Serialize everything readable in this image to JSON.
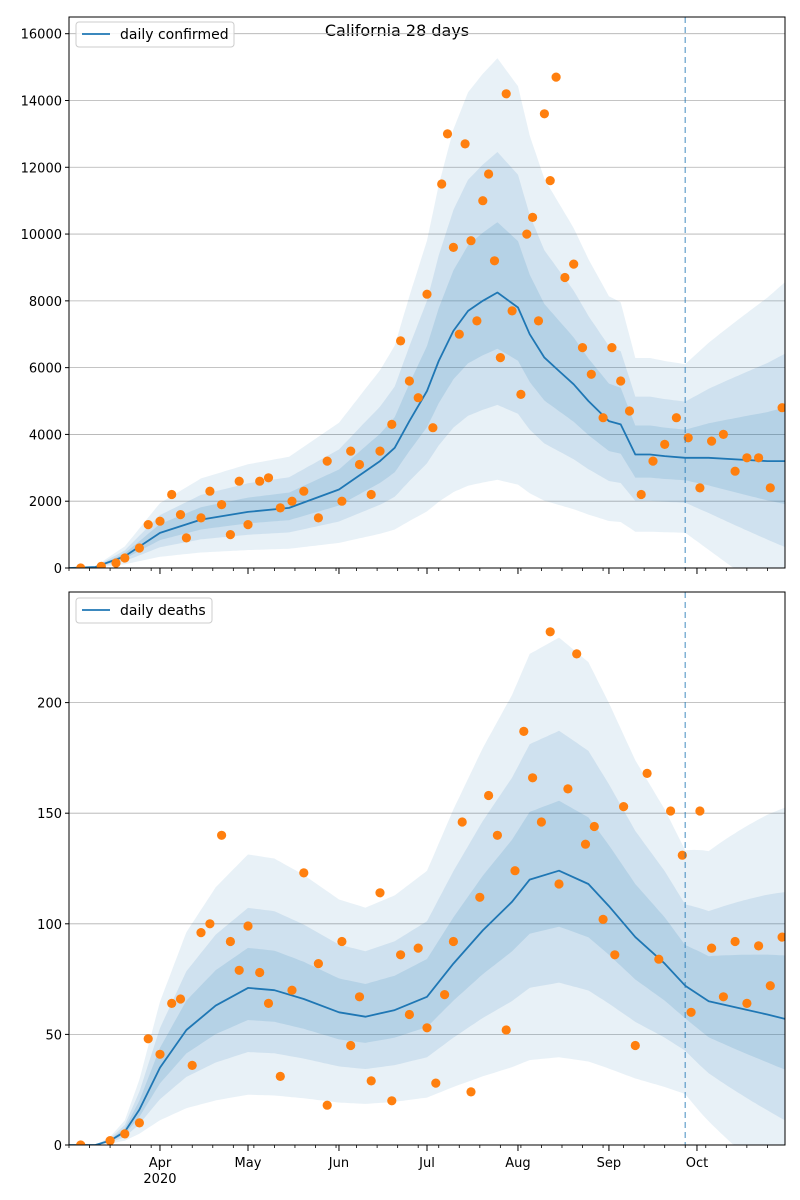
{
  "chart_data": [
    {
      "type": "line",
      "title": "California 28 days",
      "xlabel": "",
      "ylabel": "",
      "xlim": [
        "2020-03-01",
        "2020-10-31"
      ],
      "ylim": [
        0,
        16500
      ],
      "grid": "horizontal",
      "legend_position": "top-left",
      "yticks": [
        0,
        2000,
        4000,
        6000,
        8000,
        10000,
        12000,
        14000,
        16000
      ],
      "ytick_labels": [
        "0",
        "2000",
        "4000",
        "6000",
        "8000",
        "10000",
        "12000",
        "14000",
        "16000"
      ],
      "vline_date": "2020-09-27",
      "series": [
        {
          "name": "daily confirmed",
          "kind": "line",
          "color": "#1f77b4",
          "x": [
            "2020-03-01",
            "2020-03-10",
            "2020-03-20",
            "2020-04-01",
            "2020-04-15",
            "2020-05-01",
            "2020-05-15",
            "2020-06-01",
            "2020-06-10",
            "2020-06-15",
            "2020-06-20",
            "2020-06-25",
            "2020-07-01",
            "2020-07-05",
            "2020-07-10",
            "2020-07-15",
            "2020-07-20",
            "2020-07-25",
            "2020-08-01",
            "2020-08-05",
            "2020-08-10",
            "2020-08-15",
            "2020-08-20",
            "2020-08-25",
            "2020-09-01",
            "2020-09-05",
            "2020-09-10",
            "2020-09-15",
            "2020-09-20",
            "2020-09-27",
            "2020-10-05",
            "2020-10-15",
            "2020-10-25",
            "2020-10-31"
          ],
          "y": [
            0,
            30,
            350,
            1050,
            1450,
            1680,
            1800,
            2350,
            2900,
            3200,
            3600,
            4400,
            5300,
            6200,
            7100,
            7700,
            8000,
            8250,
            7800,
            7000,
            6300,
            5900,
            5500,
            5000,
            4400,
            4300,
            3400,
            3400,
            3350,
            3300,
            3300,
            3250,
            3200,
            3200
          ]
        },
        {
          "name": "",
          "kind": "scatter",
          "color": "#ff7f0e",
          "x": [
            "2020-03-05",
            "2020-03-12",
            "2020-03-17",
            "2020-03-20",
            "2020-03-25",
            "2020-03-28",
            "2020-04-01",
            "2020-04-05",
            "2020-04-08",
            "2020-04-10",
            "2020-04-15",
            "2020-04-18",
            "2020-04-22",
            "2020-04-25",
            "2020-04-28",
            "2020-05-01",
            "2020-05-05",
            "2020-05-08",
            "2020-05-12",
            "2020-05-16",
            "2020-05-20",
            "2020-05-25",
            "2020-05-28",
            "2020-06-02",
            "2020-06-05",
            "2020-06-08",
            "2020-06-12",
            "2020-06-15",
            "2020-06-19",
            "2020-06-22",
            "2020-06-25",
            "2020-06-28",
            "2020-07-01",
            "2020-07-03",
            "2020-07-06",
            "2020-07-08",
            "2020-07-10",
            "2020-07-12",
            "2020-07-14",
            "2020-07-16",
            "2020-07-18",
            "2020-07-20",
            "2020-07-22",
            "2020-07-24",
            "2020-07-26",
            "2020-07-28",
            "2020-07-30",
            "2020-08-02",
            "2020-08-04",
            "2020-08-06",
            "2020-08-08",
            "2020-08-10",
            "2020-08-12",
            "2020-08-14",
            "2020-08-17",
            "2020-08-20",
            "2020-08-23",
            "2020-08-26",
            "2020-08-30",
            "2020-09-02",
            "2020-09-05",
            "2020-09-08",
            "2020-09-12",
            "2020-09-16",
            "2020-09-20",
            "2020-09-24",
            "2020-09-28",
            "2020-10-02",
            "2020-10-06",
            "2020-10-10",
            "2020-10-14",
            "2020-10-18",
            "2020-10-22",
            "2020-10-26",
            "2020-10-30"
          ],
          "y": [
            0,
            50,
            150,
            300,
            600,
            1300,
            1400,
            2200,
            1600,
            900,
            1500,
            2300,
            1900,
            1000,
            2600,
            1300,
            2600,
            2700,
            1800,
            2000,
            2300,
            1500,
            3200,
            2000,
            3500,
            3100,
            2200,
            3500,
            4300,
            6800,
            5600,
            5100,
            8200,
            4200,
            11500,
            13000,
            9600,
            7000,
            12700,
            9800,
            7400,
            11000,
            11800,
            9200,
            6300,
            14200,
            7700,
            5200,
            10000,
            10500,
            7400,
            13600,
            11600,
            14700,
            8700,
            9100,
            6600,
            5800,
            4500,
            6600,
            5600,
            4700,
            2200,
            3200,
            3700,
            4500,
            3900,
            2400,
            3800,
            4000,
            2900,
            3300,
            3300,
            2400,
            4800
          ]
        }
      ]
    },
    {
      "type": "line",
      "title": "",
      "xlabel": "",
      "ylabel": "",
      "xlim": [
        "2020-03-01",
        "2020-10-31"
      ],
      "ylim": [
        0,
        250
      ],
      "grid": "horizontal",
      "legend_position": "top-left",
      "yticks": [
        0,
        50,
        100,
        150,
        200
      ],
      "ytick_labels": [
        "0",
        "50",
        "100",
        "150",
        "200"
      ],
      "xtick_labels": [
        "Apr\n2020",
        "May",
        "Jun",
        "Jul",
        "Aug",
        "Sep",
        "Oct"
      ],
      "xtick_dates": [
        "2020-04-01",
        "2020-05-01",
        "2020-06-01",
        "2020-07-01",
        "2020-08-01",
        "2020-09-01",
        "2020-10-01"
      ],
      "vline_date": "2020-09-27",
      "series": [
        {
          "name": "daily deaths",
          "kind": "line",
          "color": "#1f77b4",
          "x": [
            "2020-03-01",
            "2020-03-10",
            "2020-03-15",
            "2020-03-20",
            "2020-03-25",
            "2020-04-01",
            "2020-04-10",
            "2020-04-20",
            "2020-05-01",
            "2020-05-10",
            "2020-05-20",
            "2020-06-01",
            "2020-06-10",
            "2020-06-20",
            "2020-07-01",
            "2020-07-10",
            "2020-07-20",
            "2020-07-30",
            "2020-08-05",
            "2020-08-15",
            "2020-08-25",
            "2020-09-01",
            "2020-09-10",
            "2020-09-20",
            "2020-09-27",
            "2020-10-05",
            "2020-10-15",
            "2020-10-25",
            "2020-10-31"
          ],
          "y": [
            0,
            0,
            2,
            6,
            16,
            35,
            52,
            63,
            71,
            70,
            66,
            60,
            58,
            61,
            67,
            82,
            97,
            110,
            120,
            124,
            118,
            108,
            94,
            82,
            72,
            65,
            62,
            59,
            57
          ]
        },
        {
          "name": "",
          "kind": "scatter",
          "color": "#ff7f0e",
          "x": [
            "2020-03-05",
            "2020-03-15",
            "2020-03-20",
            "2020-03-25",
            "2020-03-28",
            "2020-04-01",
            "2020-04-05",
            "2020-04-08",
            "2020-04-12",
            "2020-04-15",
            "2020-04-18",
            "2020-04-22",
            "2020-04-25",
            "2020-04-28",
            "2020-05-01",
            "2020-05-05",
            "2020-05-08",
            "2020-05-12",
            "2020-05-16",
            "2020-05-20",
            "2020-05-25",
            "2020-05-28",
            "2020-06-02",
            "2020-06-05",
            "2020-06-08",
            "2020-06-12",
            "2020-06-15",
            "2020-06-19",
            "2020-06-22",
            "2020-06-25",
            "2020-06-28",
            "2020-07-01",
            "2020-07-04",
            "2020-07-07",
            "2020-07-10",
            "2020-07-13",
            "2020-07-16",
            "2020-07-19",
            "2020-07-22",
            "2020-07-25",
            "2020-07-28",
            "2020-07-31",
            "2020-08-03",
            "2020-08-06",
            "2020-08-09",
            "2020-08-12",
            "2020-08-15",
            "2020-08-18",
            "2020-08-21",
            "2020-08-24",
            "2020-08-27",
            "2020-08-30",
            "2020-09-03",
            "2020-09-06",
            "2020-09-10",
            "2020-09-14",
            "2020-09-18",
            "2020-09-22",
            "2020-09-26",
            "2020-09-29",
            "2020-10-02",
            "2020-10-06",
            "2020-10-10",
            "2020-10-14",
            "2020-10-18",
            "2020-10-22",
            "2020-10-26",
            "2020-10-30"
          ],
          "y": [
            0,
            2,
            5,
            10,
            48,
            41,
            64,
            66,
            36,
            96,
            100,
            140,
            92,
            79,
            99,
            78,
            64,
            31,
            70,
            123,
            82,
            18,
            92,
            45,
            67,
            29,
            114,
            20,
            86,
            59,
            89,
            53,
            28,
            68,
            92,
            146,
            24,
            112,
            158,
            140,
            52,
            124,
            187,
            166,
            146,
            232,
            118,
            161,
            222,
            136,
            144,
            102,
            86,
            153,
            45,
            168,
            84,
            151,
            131,
            60,
            151,
            89,
            67,
            92,
            64,
            90,
            72,
            94
          ]
        }
      ]
    }
  ],
  "legend": {
    "confirmed_label": "daily confirmed",
    "deaths_label": "daily deaths"
  },
  "colors": {
    "line": "#1f77b4",
    "points": "#ff7f0e",
    "band": "#1f77b4",
    "vline": "#1f77b4",
    "grid": "#b0b0b0"
  }
}
